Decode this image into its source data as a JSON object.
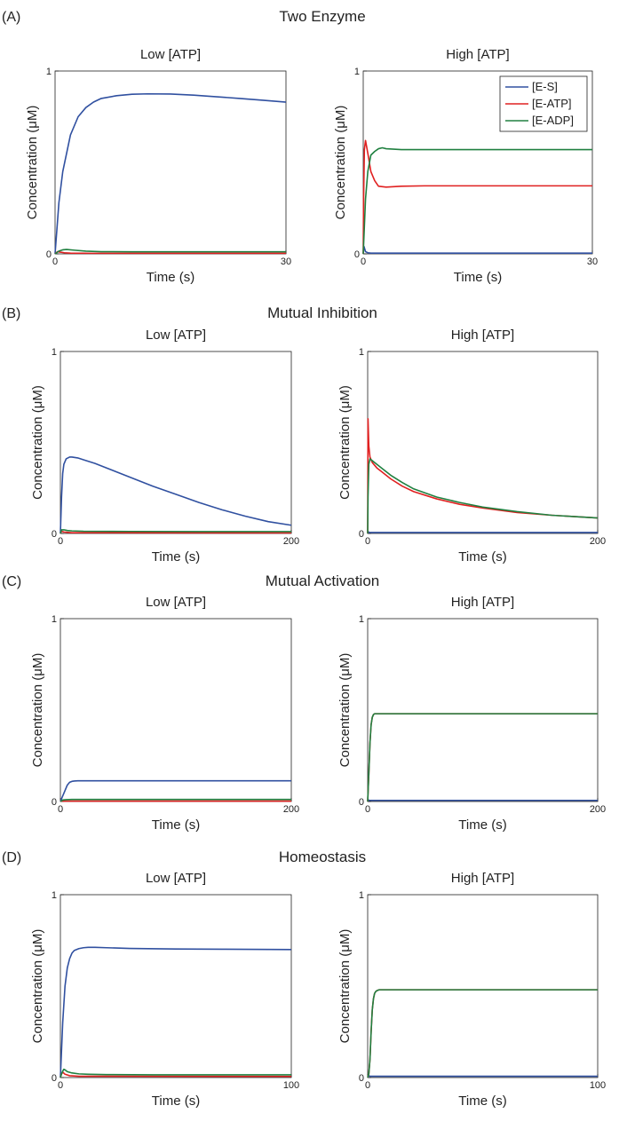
{
  "colors": {
    "es": "#3050a0",
    "eatp": "#e02020",
    "eadp": "#208040"
  },
  "legend": {
    "es": "[E-S]",
    "eatp": "[E-ATP]",
    "eadp": "[E-ADP]"
  },
  "panels": [
    {
      "label": "(A)",
      "title": "Two Enzyme"
    },
    {
      "label": "(B)",
      "title": "Mutual Inhibition"
    },
    {
      "label": "(C)",
      "title": "Mutual Activation"
    },
    {
      "label": "(D)",
      "title": "Homeostasis"
    }
  ],
  "chart_data": [
    {
      "type": "line",
      "title": "Low [ATP]",
      "xlabel": "Time (s)",
      "ylabel": "Concentration (μM)",
      "xlim": [
        0,
        30
      ],
      "ylim": [
        0,
        1
      ],
      "xticks": [
        0,
        30
      ],
      "yticks": [
        0,
        1
      ],
      "legend": "none",
      "series": [
        {
          "key": "es",
          "x": [
            0,
            0.5,
            1,
            2,
            3,
            4,
            5,
            6,
            8,
            10,
            12,
            15,
            18,
            20,
            24,
            27,
            30
          ],
          "y": [
            0,
            0.28,
            0.45,
            0.65,
            0.75,
            0.8,
            0.83,
            0.85,
            0.865,
            0.873,
            0.875,
            0.874,
            0.868,
            0.862,
            0.85,
            0.84,
            0.83
          ]
        },
        {
          "key": "eatp",
          "x": [
            0,
            0.3,
            0.6,
            1.2,
            2,
            5,
            10,
            30
          ],
          "y": [
            0,
            0.012,
            0.01,
            0.006,
            0.004,
            0.003,
            0.003,
            0.003
          ]
        },
        {
          "key": "eadp",
          "x": [
            0,
            0.5,
            1,
            1.5,
            2.5,
            4,
            6,
            10,
            20,
            30
          ],
          "y": [
            0,
            0.015,
            0.022,
            0.024,
            0.02,
            0.015,
            0.012,
            0.011,
            0.011,
            0.011
          ]
        }
      ]
    },
    {
      "type": "line",
      "title": "High [ATP]",
      "xlabel": "Time (s)",
      "ylabel": "Concentration (μM)",
      "xlim": [
        0,
        30
      ],
      "ylim": [
        0,
        1
      ],
      "xticks": [
        0,
        30
      ],
      "yticks": [
        0,
        1
      ],
      "legend": "top-right",
      "series": [
        {
          "key": "es",
          "x": [
            0,
            0.1,
            0.3,
            0.6,
            1,
            30
          ],
          "y": [
            0,
            0.04,
            0.012,
            0.006,
            0.004,
            0.004
          ]
        },
        {
          "key": "eatp",
          "x": [
            0,
            0.05,
            0.15,
            0.3,
            0.6,
            1,
            1.5,
            2,
            3,
            5,
            8,
            12,
            20,
            30
          ],
          "y": [
            0,
            0.3,
            0.57,
            0.62,
            0.55,
            0.45,
            0.4,
            0.37,
            0.365,
            0.37,
            0.372,
            0.372,
            0.372,
            0.372
          ]
        },
        {
          "key": "eadp",
          "x": [
            0,
            0.1,
            0.3,
            0.6,
            1,
            1.5,
            2,
            2.5,
            3,
            5,
            8,
            12,
            20,
            30
          ],
          "y": [
            0,
            0.1,
            0.3,
            0.45,
            0.54,
            0.56,
            0.575,
            0.58,
            0.575,
            0.57,
            0.57,
            0.57,
            0.57,
            0.57
          ]
        }
      ]
    },
    {
      "type": "line",
      "title": "Low [ATP]",
      "xlabel": "Time (s)",
      "ylabel": "Concentration (μM)",
      "xlim": [
        0,
        200
      ],
      "ylim": [
        0,
        1
      ],
      "xticks": [
        0,
        200
      ],
      "yticks": [
        0,
        1
      ],
      "legend": "none",
      "series": [
        {
          "key": "es",
          "x": [
            0,
            1,
            2,
            3,
            5,
            8,
            10,
            15,
            20,
            30,
            40,
            60,
            80,
            100,
            120,
            140,
            160,
            180,
            200
          ],
          "y": [
            0,
            0.2,
            0.33,
            0.38,
            0.41,
            0.42,
            0.42,
            0.415,
            0.405,
            0.385,
            0.36,
            0.31,
            0.26,
            0.215,
            0.17,
            0.13,
            0.095,
            0.065,
            0.045
          ]
        },
        {
          "key": "eatp",
          "x": [
            0,
            1,
            3,
            10,
            200
          ],
          "y": [
            0,
            0.012,
            0.008,
            0.004,
            0.003
          ]
        },
        {
          "key": "eadp",
          "x": [
            0,
            1,
            3,
            6,
            10,
            20,
            60,
            120,
            200
          ],
          "y": [
            0,
            0.02,
            0.02,
            0.016,
            0.014,
            0.012,
            0.011,
            0.01,
            0.01
          ]
        }
      ]
    },
    {
      "type": "line",
      "title": "High [ATP]",
      "xlabel": "Time (s)",
      "ylabel": "Concentration (μM)",
      "xlim": [
        0,
        200
      ],
      "ylim": [
        0,
        1
      ],
      "xticks": [
        0,
        200
      ],
      "yticks": [
        0,
        1
      ],
      "legend": "none",
      "series": [
        {
          "key": "es",
          "x": [
            0,
            0.5,
            1,
            200
          ],
          "y": [
            0,
            0.01,
            0.005,
            0.005
          ]
        },
        {
          "key": "eatp",
          "x": [
            0,
            0.3,
            1,
            2,
            4,
            8,
            12,
            20,
            30,
            40,
            60,
            80,
            100,
            130,
            160,
            200
          ],
          "y": [
            0,
            0.63,
            0.48,
            0.42,
            0.39,
            0.36,
            0.34,
            0.3,
            0.26,
            0.23,
            0.19,
            0.16,
            0.14,
            0.115,
            0.1,
            0.085
          ]
        },
        {
          "key": "eadp",
          "x": [
            0,
            0.3,
            1,
            2,
            4,
            8,
            12,
            20,
            30,
            40,
            60,
            80,
            100,
            130,
            160,
            200
          ],
          "y": [
            0,
            0.2,
            0.38,
            0.41,
            0.4,
            0.38,
            0.36,
            0.32,
            0.28,
            0.245,
            0.2,
            0.17,
            0.145,
            0.12,
            0.1,
            0.085
          ]
        }
      ]
    },
    {
      "type": "line",
      "title": "Low [ATP]",
      "xlabel": "Time (s)",
      "ylabel": "Concentration (μM)",
      "xlim": [
        0,
        200
      ],
      "ylim": [
        0,
        1
      ],
      "xticks": [
        0,
        200
      ],
      "yticks": [
        0,
        1
      ],
      "legend": "none",
      "series": [
        {
          "key": "es",
          "x": [
            0,
            2,
            4,
            6,
            8,
            10,
            12,
            15,
            20,
            200
          ],
          "y": [
            0,
            0.03,
            0.06,
            0.09,
            0.105,
            0.11,
            0.112,
            0.113,
            0.113,
            0.113
          ]
        },
        {
          "key": "eatp",
          "x": [
            0,
            1,
            3,
            200
          ],
          "y": [
            0,
            0.003,
            0.002,
            0.002
          ]
        },
        {
          "key": "eadp",
          "x": [
            0,
            2,
            5,
            10,
            200
          ],
          "y": [
            0,
            0.008,
            0.01,
            0.011,
            0.011
          ]
        }
      ]
    },
    {
      "type": "line",
      "title": "High [ATP]",
      "xlabel": "Time (s)",
      "ylabel": "Concentration (μM)",
      "xlim": [
        0,
        200
      ],
      "ylim": [
        0,
        1
      ],
      "xticks": [
        0,
        200
      ],
      "yticks": [
        0,
        1
      ],
      "legend": "none",
      "series": [
        {
          "key": "es",
          "x": [
            0,
            0.5,
            1,
            200
          ],
          "y": [
            0,
            0.01,
            0.006,
            0.006
          ]
        },
        {
          "key": "eatp",
          "x": [
            0,
            1,
            2,
            3,
            4,
            5,
            6,
            200
          ],
          "y": [
            0,
            0.15,
            0.32,
            0.42,
            0.46,
            0.475,
            0.48,
            0.48
          ]
        },
        {
          "key": "eadp",
          "x": [
            0,
            1,
            2,
            3,
            4,
            5,
            6,
            200
          ],
          "y": [
            0,
            0.15,
            0.32,
            0.42,
            0.46,
            0.475,
            0.48,
            0.48
          ]
        }
      ]
    },
    {
      "type": "line",
      "title": "Low [ATP]",
      "xlabel": "Time (s)",
      "ylabel": "Concentration (μM)",
      "xlim": [
        0,
        100
      ],
      "ylim": [
        0,
        1
      ],
      "xticks": [
        0,
        100
      ],
      "yticks": [
        0,
        1
      ],
      "legend": "none",
      "series": [
        {
          "key": "es",
          "x": [
            0,
            1,
            2,
            3,
            4,
            5,
            6,
            8,
            10,
            12,
            15,
            20,
            30,
            50,
            70,
            100
          ],
          "y": [
            0,
            0.3,
            0.5,
            0.6,
            0.65,
            0.68,
            0.695,
            0.705,
            0.71,
            0.712,
            0.712,
            0.71,
            0.706,
            0.703,
            0.702,
            0.7
          ]
        },
        {
          "key": "eatp",
          "x": [
            0,
            0.5,
            1,
            2,
            4,
            8,
            100
          ],
          "y": [
            0,
            0.02,
            0.03,
            0.018,
            0.01,
            0.007,
            0.006
          ]
        },
        {
          "key": "eadp",
          "x": [
            0,
            0.5,
            1,
            1.5,
            2,
            3,
            5,
            8,
            12,
            20,
            40,
            100
          ],
          "y": [
            0,
            0.02,
            0.035,
            0.045,
            0.042,
            0.032,
            0.025,
            0.02,
            0.018,
            0.016,
            0.015,
            0.015
          ]
        }
      ]
    },
    {
      "type": "line",
      "title": "High [ATP]",
      "xlabel": "Time (s)",
      "ylabel": "Concentration (μM)",
      "xlim": [
        0,
        100
      ],
      "ylim": [
        0,
        1
      ],
      "xticks": [
        0,
        100
      ],
      "yticks": [
        0,
        1
      ],
      "legend": "none",
      "series": [
        {
          "key": "es",
          "x": [
            0,
            0.5,
            1,
            100
          ],
          "y": [
            0,
            0.01,
            0.007,
            0.007
          ]
        },
        {
          "key": "eatp",
          "x": [
            0,
            0.5,
            1,
            1.5,
            2,
            2.5,
            3,
            3.5,
            4,
            5,
            100
          ],
          "y": [
            0,
            0.02,
            0.1,
            0.25,
            0.37,
            0.43,
            0.46,
            0.47,
            0.475,
            0.48,
            0.48
          ]
        },
        {
          "key": "eadp",
          "x": [
            0,
            0.5,
            1,
            1.5,
            2,
            2.5,
            3,
            3.5,
            4,
            5,
            100
          ],
          "y": [
            0,
            0.02,
            0.1,
            0.25,
            0.37,
            0.43,
            0.46,
            0.47,
            0.475,
            0.48,
            0.48
          ]
        }
      ]
    }
  ]
}
